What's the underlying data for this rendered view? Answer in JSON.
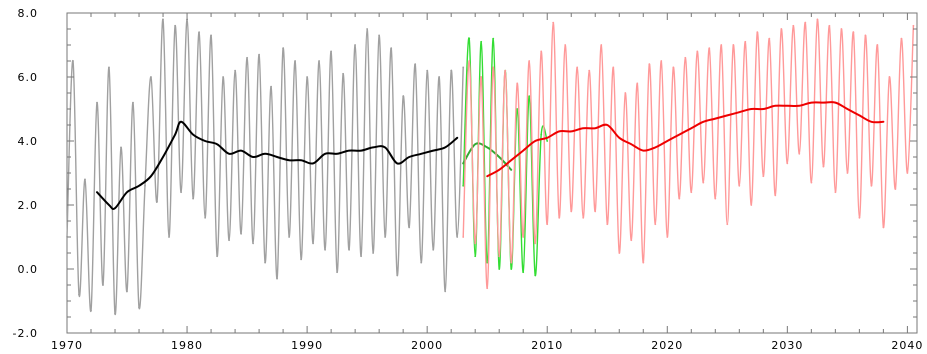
{
  "chart_data": {
    "type": "line",
    "title": "",
    "xlabel": "",
    "ylabel": "",
    "xlim": [
      1970,
      2040.8
    ],
    "ylim": [
      -2.0,
      8.0
    ],
    "grid": false,
    "legend": "none",
    "x_ticks": [
      1970,
      1980,
      1990,
      2000,
      2010,
      2020,
      2030,
      2040
    ],
    "x_tick_labels": [
      "1970",
      "1980",
      "1990",
      "2000",
      "2010",
      "2020",
      "2030",
      "2040"
    ],
    "y_ticks": [
      -2.0,
      0.0,
      2.0,
      4.0,
      6.0,
      8.0
    ],
    "y_tick_labels": [
      "-2.0",
      "0.0",
      "2.0",
      "4.0",
      "6.0",
      "8.0"
    ],
    "series": [
      {
        "color": "#a0a0a0",
        "style": "seasonal",
        "x": [
          1970.0,
          1970.5,
          1971.0,
          1971.5,
          1972.0,
          1972.5,
          1973.0,
          1973.5,
          1974.0,
          1974.5,
          1975.0,
          1975.5,
          1976.0,
          1976.5,
          1977.0,
          1977.5,
          1978.0,
          1978.5,
          1979.0,
          1979.5,
          1980.0,
          1980.5,
          1981.0,
          1981.5,
          1982.0,
          1982.5,
          1983.0,
          1983.5,
          1984.0,
          1984.5,
          1985.0,
          1985.5,
          1986.0,
          1986.5,
          1987.0,
          1987.5,
          1988.0,
          1988.5,
          1989.0,
          1989.5,
          1990.0,
          1990.5,
          1991.0,
          1991.5,
          1992.0,
          1992.5,
          1993.0,
          1993.5,
          1994.0,
          1994.5,
          1995.0,
          1995.5,
          1996.0,
          1996.5,
          1997.0,
          1997.5,
          1998.0,
          1998.5,
          1999.0,
          1999.5,
          2000.0,
          2000.5,
          2001.0,
          2001.5,
          2002.0,
          2002.5,
          2003.0
        ],
        "y": [
          1.0,
          6.5,
          -0.8,
          2.8,
          -1.3,
          5.2,
          -0.5,
          6.3,
          -1.4,
          3.8,
          -0.7,
          5.2,
          -1.2,
          2.6,
          6.0,
          2.1,
          7.8,
          1.0,
          7.6,
          2.4,
          7.8,
          2.2,
          7.4,
          1.6,
          7.3,
          0.4,
          6.0,
          0.9,
          6.2,
          1.1,
          6.6,
          0.8,
          6.7,
          0.2,
          5.7,
          -0.3,
          6.9,
          1.0,
          6.5,
          0.3,
          6.0,
          0.8,
          6.5,
          0.6,
          6.8,
          -0.1,
          6.1,
          0.6,
          7.0,
          0.4,
          7.5,
          0.5,
          7.3,
          1.0,
          6.9,
          -0.2,
          5.4,
          1.3,
          6.4,
          0.2,
          6.2,
          0.6,
          6.0,
          -0.7,
          6.2,
          1.0,
          6.3
        ]
      },
      {
        "color": "#000000",
        "style": "trend",
        "x": [
          1972.5,
          1973.5,
          1974.0,
          1975.0,
          1976.0,
          1977.0,
          1978.0,
          1979.0,
          1979.5,
          1980.5,
          1981.5,
          1982.5,
          1983.5,
          1984.5,
          1985.5,
          1986.5,
          1987.5,
          1988.5,
          1989.5,
          1990.5,
          1991.5,
          1992.5,
          1993.5,
          1994.5,
          1995.5,
          1996.5,
          1997.5,
          1998.5,
          1999.5,
          2000.5,
          2001.5,
          2002.5
        ],
        "y": [
          2.4,
          2.0,
          1.9,
          2.4,
          2.6,
          2.9,
          3.5,
          4.2,
          4.6,
          4.2,
          4.0,
          3.9,
          3.6,
          3.7,
          3.5,
          3.6,
          3.5,
          3.4,
          3.4,
          3.3,
          3.6,
          3.6,
          3.7,
          3.7,
          3.8,
          3.8,
          3.3,
          3.5,
          3.6,
          3.7,
          3.8,
          4.1
        ]
      },
      {
        "color": "#33dd33",
        "style": "seasonal",
        "x": [
          2003.0,
          2003.5,
          2004.0,
          2004.5,
          2005.0,
          2005.5,
          2006.0,
          2006.5,
          2007.0,
          2007.5,
          2008.0,
          2008.5,
          2009.0,
          2009.5,
          2010.0
        ],
        "y": [
          2.6,
          7.2,
          0.4,
          7.1,
          0.2,
          7.2,
          0.0,
          6.2,
          0.0,
          5.0,
          -0.1,
          5.4,
          -0.2,
          4.2,
          4.0
        ]
      },
      {
        "color": "#33aa33",
        "style": "trend",
        "x": [
          2003.0,
          2004.0,
          2005.0,
          2006.0,
          2007.0
        ],
        "y": [
          3.3,
          3.9,
          3.8,
          3.5,
          3.1
        ]
      },
      {
        "color": "#ff9999",
        "style": "seasonal",
        "x": [
          2003.0,
          2003.5,
          2004.0,
          2004.5,
          2005.0,
          2005.5,
          2006.0,
          2006.5,
          2007.0,
          2007.5,
          2008.0,
          2008.5,
          2009.0,
          2009.5,
          2010.0,
          2010.5,
          2011.0,
          2011.5,
          2012.0,
          2012.5,
          2013.0,
          2013.5,
          2014.0,
          2014.5,
          2015.0,
          2015.5,
          2016.0,
          2016.5,
          2017.0,
          2017.5,
          2018.0,
          2018.5,
          2019.0,
          2019.5,
          2020.0,
          2020.5,
          2021.0,
          2021.5,
          2022.0,
          2022.5,
          2023.0,
          2023.5,
          2024.0,
          2024.5,
          2025.0,
          2025.5,
          2026.0,
          2026.5,
          2027.0,
          2027.5,
          2028.0,
          2028.5,
          2029.0,
          2029.5,
          2030.0,
          2030.5,
          2031.0,
          2031.5,
          2032.0,
          2032.5,
          2033.0,
          2033.5,
          2034.0,
          2034.5,
          2035.0,
          2035.5,
          2036.0,
          2036.5,
          2037.0,
          2037.5,
          2038.0,
          2038.5,
          2039.0,
          2039.5,
          2040.0,
          2040.5
        ],
        "y": [
          1.0,
          6.5,
          0.8,
          6.0,
          -0.6,
          6.3,
          0.4,
          6.2,
          0.2,
          5.8,
          1.0,
          6.5,
          0.8,
          6.8,
          1.4,
          7.7,
          1.6,
          7.0,
          1.8,
          6.3,
          1.6,
          6.2,
          1.8,
          7.0,
          1.4,
          6.3,
          0.5,
          5.5,
          0.9,
          5.8,
          0.2,
          6.4,
          1.4,
          6.5,
          1.0,
          6.3,
          2.2,
          6.6,
          2.4,
          6.8,
          2.7,
          6.9,
          2.2,
          7.0,
          1.4,
          7.0,
          2.6,
          7.1,
          2.0,
          7.4,
          2.9,
          7.2,
          2.3,
          7.5,
          3.3,
          7.6,
          3.6,
          7.7,
          2.7,
          7.8,
          3.2,
          7.6,
          2.4,
          7.5,
          3.0,
          7.4,
          1.6,
          7.3,
          2.6,
          7.0,
          1.3,
          6.0,
          2.5,
          7.2,
          3.0,
          7.6
        ]
      },
      {
        "color": "#ee0000",
        "style": "trend",
        "x": [
          2005.0,
          2006.0,
          2007.0,
          2008.0,
          2009.0,
          2010.0,
          2011.0,
          2012.0,
          2013.0,
          2014.0,
          2015.0,
          2016.0,
          2017.0,
          2018.0,
          2019.0,
          2020.0,
          2021.0,
          2022.0,
          2023.0,
          2024.0,
          2025.0,
          2026.0,
          2027.0,
          2028.0,
          2029.0,
          2030.0,
          2031.0,
          2032.0,
          2033.0,
          2034.0,
          2035.0,
          2036.0,
          2037.0,
          2038.0
        ],
        "y": [
          2.9,
          3.1,
          3.4,
          3.7,
          4.0,
          4.1,
          4.3,
          4.3,
          4.4,
          4.4,
          4.5,
          4.1,
          3.9,
          3.7,
          3.8,
          4.0,
          4.2,
          4.4,
          4.6,
          4.7,
          4.8,
          4.9,
          5.0,
          5.0,
          5.1,
          5.1,
          5.1,
          5.2,
          5.2,
          5.2,
          5.0,
          4.8,
          4.6,
          4.6
        ]
      }
    ]
  }
}
